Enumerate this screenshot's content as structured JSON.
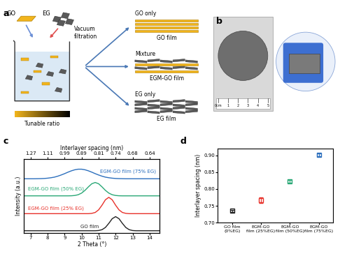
{
  "panel_labels": [
    "a",
    "b",
    "c",
    "d"
  ],
  "diagram": {
    "inputs": [
      "GO",
      "EG"
    ],
    "mixer_label": "Tunable ratio",
    "process": "Vacuum\nfiltration",
    "routes": [
      {
        "label": "GO only",
        "product": "GO film"
      },
      {
        "label": "Mixture",
        "product": "EGM-GO film"
      },
      {
        "label": "EG only",
        "product": "EG film"
      }
    ]
  },
  "photo": {
    "ruler": [
      "0cm",
      "1",
      "2",
      "3",
      "4",
      "5"
    ]
  },
  "chart_data": [
    {
      "type": "line",
      "xlabel": "2 Theta (°)",
      "ylabel": "Intensity (a.u.)",
      "x2label": "Interlayer spacing (nm)",
      "x": [
        6.6,
        6.8,
        7.0,
        7.2,
        7.4,
        7.6,
        7.8,
        8.0,
        8.2,
        8.4,
        8.6,
        8.8,
        9.0,
        9.2,
        9.4,
        9.6,
        9.8,
        10.0,
        10.2,
        10.4,
        10.6,
        10.8,
        11.0,
        11.2,
        11.4,
        11.6,
        11.8,
        12.0,
        12.2,
        12.4,
        12.6,
        12.8,
        13.0,
        13.2,
        13.4,
        13.6,
        13.8,
        14.0,
        14.2,
        14.4,
        14.6
      ],
      "series": [
        {
          "name": "GO film",
          "color": "#222222",
          "values": [
            0.3,
            0.3,
            0.3,
            0.3,
            0.3,
            0.3,
            0.3,
            0.3,
            0.3,
            0.3,
            0.3,
            0.3,
            0.3,
            0.3,
            0.3,
            0.3,
            0.3,
            0.3,
            0.3,
            0.3,
            0.3,
            0.3,
            0.33,
            0.44,
            0.74,
            1.29,
            1.92,
            2.2,
            1.92,
            1.29,
            0.74,
            0.44,
            0.33,
            0.3,
            0.3,
            0.3,
            0.3,
            0.3,
            0.3,
            0.3,
            0.3
          ]
        },
        {
          "name": "EGM-GO film (25% EG)",
          "color": "#e8322b",
          "values": [
            2.6,
            2.6,
            2.6,
            2.6,
            2.6,
            2.6,
            2.6,
            2.6,
            2.6,
            2.6,
            2.6,
            2.6,
            2.6,
            2.6,
            2.6,
            2.6,
            2.6,
            2.6,
            2.6,
            2.6,
            2.64,
            2.76,
            3.11,
            3.74,
            4.47,
            4.8,
            4.47,
            3.74,
            3.11,
            2.76,
            2.64,
            2.6,
            2.6,
            2.6,
            2.6,
            2.6,
            2.6,
            2.6,
            2.6,
            2.6,
            2.6
          ]
        },
        {
          "name": "EGM-GO film (50% EG)",
          "color": "#2aa876",
          "values": [
            5.0,
            5.0,
            5.0,
            5.0,
            5.0,
            5.0,
            5.0,
            5.0,
            5.0,
            5.0,
            5.0,
            5.0,
            5.0,
            5.0,
            5.01,
            5.05,
            5.15,
            5.37,
            5.74,
            6.21,
            6.63,
            6.8,
            6.63,
            6.21,
            5.74,
            5.37,
            5.15,
            5.05,
            5.01,
            5.0,
            5.0,
            5.0,
            5.0,
            5.0,
            5.0,
            5.0,
            5.0,
            5.0,
            5.0,
            5.0,
            5.0
          ]
        },
        {
          "name": "EGM-GO film (75% EG)",
          "color": "#2c6fbd",
          "values": [
            7.3,
            7.3,
            7.3,
            7.3,
            7.31,
            7.32,
            7.34,
            7.38,
            7.44,
            7.52,
            7.65,
            7.81,
            7.99,
            8.19,
            8.37,
            8.51,
            8.59,
            8.59,
            8.51,
            8.37,
            8.19,
            7.99,
            7.81,
            7.65,
            7.52,
            7.44,
            7.38,
            7.34,
            7.32,
            7.31,
            7.3,
            7.3,
            7.3,
            7.3,
            7.3,
            7.3,
            7.3,
            7.3,
            7.3,
            7.3,
            7.3
          ]
        }
      ],
      "xlim": [
        6.6,
        14.6
      ],
      "xticks": [
        7,
        8,
        9,
        10,
        11,
        12,
        13,
        14
      ],
      "x2ticks": [
        {
          "value": 7,
          "label": "1.27"
        },
        {
          "value": 8,
          "label": "1.11"
        },
        {
          "value": 9,
          "label": "0.99"
        },
        {
          "value": 10,
          "label": "0.89"
        },
        {
          "value": 11,
          "label": "0.81"
        },
        {
          "value": 12,
          "label": "0.74"
        },
        {
          "value": 13,
          "label": "0.68"
        },
        {
          "value": 14,
          "label": "0.64"
        }
      ],
      "ylim": [
        0,
        10
      ],
      "yticks": [],
      "tick_labels": "x"
    },
    {
      "type": "scatter",
      "ylabel": "Interlayer spacing (nm)",
      "categories": [
        "GO film\n(0%EG)",
        "EGM-GO\nfilm (25%EG)",
        "EGM-GO\nfilm (50%EG)",
        "EGM-GO\nfilm (75%EG)"
      ],
      "values": [
        0.735,
        0.766,
        0.822,
        0.902
      ],
      "errors": [
        0.003,
        0.008,
        0.004,
        0.004
      ],
      "colors": [
        "#222222",
        "#e8322b",
        "#2aa876",
        "#2c6fbd"
      ],
      "marker": "s",
      "ylim": [
        0.7,
        0.92
      ],
      "yticks": [
        {
          "value": 0.7,
          "label": "0.70"
        },
        {
          "value": 0.75,
          "label": "0.75"
        },
        {
          "value": 0.8,
          "label": "0.80"
        },
        {
          "value": 0.85,
          "label": "0.85"
        },
        {
          "value": 0.9,
          "label": "0.90"
        }
      ]
    }
  ]
}
